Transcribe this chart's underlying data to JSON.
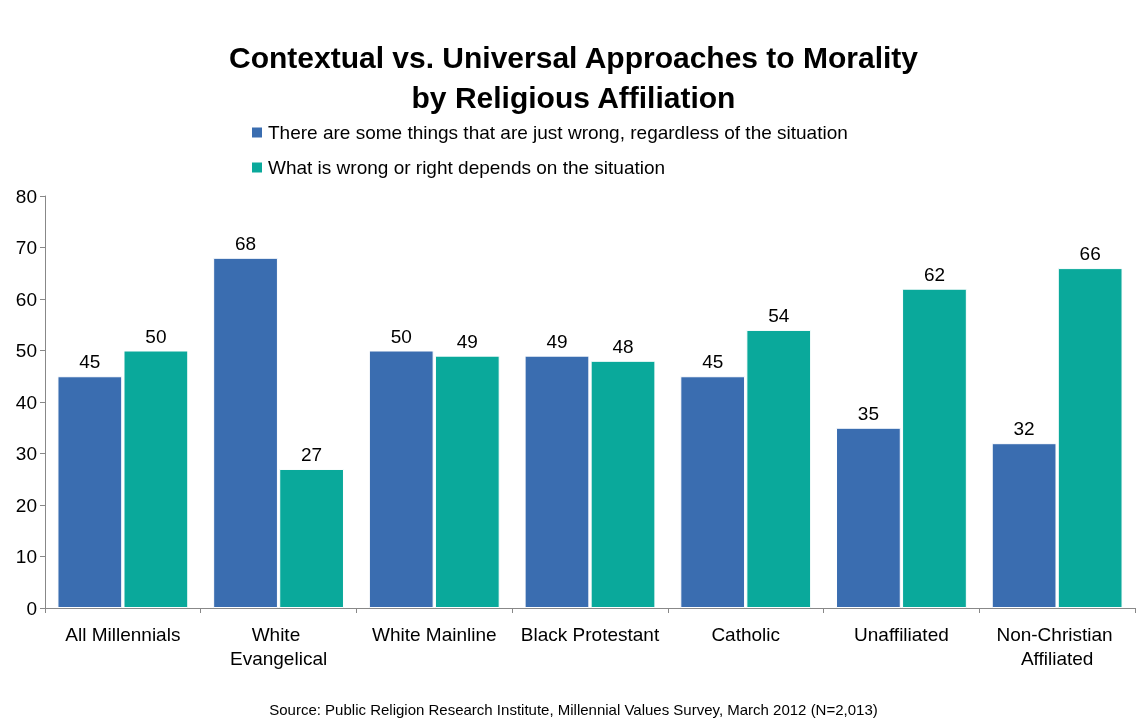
{
  "chart_data": {
    "type": "bar",
    "title": "Contextual vs. Universal Approaches to Morality\nby Religious Affiliation",
    "categories": [
      "All Millennials",
      "White Evangelical",
      "White Mainline",
      "Black Protestant",
      "Catholic",
      "Unaffiliated",
      "Non-Christian Affiliated"
    ],
    "series": [
      {
        "name": "There are some things that are just wrong, regardless of the situation",
        "color": "#3a6db0",
        "values": [
          45,
          68,
          50,
          49,
          45,
          35,
          32
        ]
      },
      {
        "name": "What is wrong or right depends on the situation",
        "color": "#0aa99b",
        "values": [
          50,
          27,
          49,
          48,
          54,
          62,
          66
        ]
      }
    ],
    "ylim": [
      0,
      80
    ],
    "yticks": [
      0,
      10,
      20,
      30,
      40,
      50,
      60,
      70,
      80
    ],
    "grid": false,
    "legend": "top",
    "data_labels": true,
    "annotations": [
      "Source: Public Religion Research Institute, Millennial Values Survey, March 2012 (N=2,013)"
    ]
  }
}
